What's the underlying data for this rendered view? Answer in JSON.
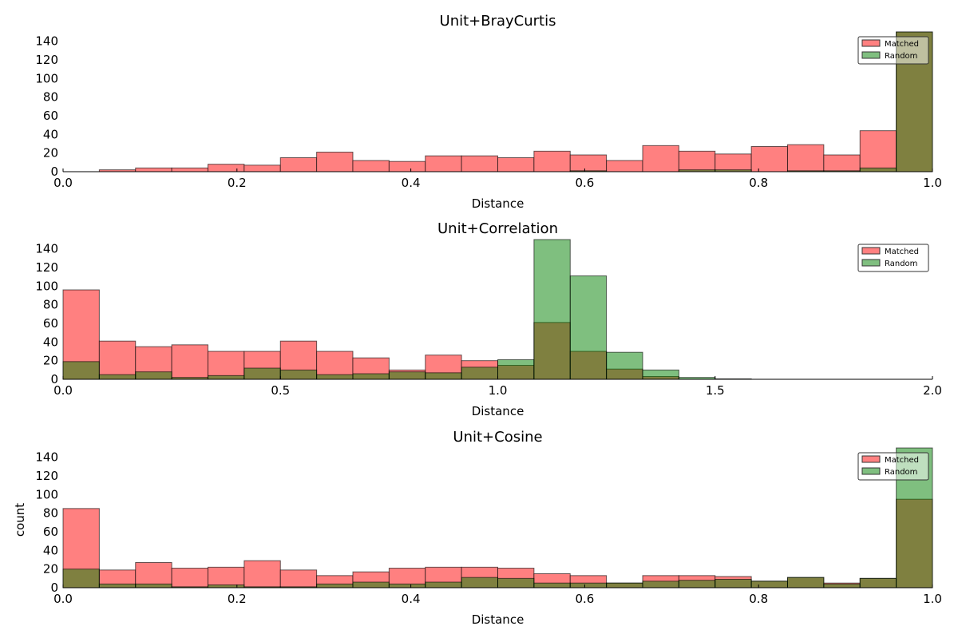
{
  "figure": {
    "ylabel": "count"
  },
  "chart_data": [
    {
      "type": "bar",
      "title": "Unit+BrayCurtis",
      "xlabel": "Distance",
      "ylabel": "",
      "xlim": [
        0,
        1
      ],
      "ylim": [
        0,
        150
      ],
      "xticks": [
        0.0,
        0.2,
        0.4,
        0.6,
        0.8,
        1.0
      ],
      "xtick_labels": [
        "0.0",
        "0.2",
        "0.4",
        "0.6",
        "0.8",
        "1.0"
      ],
      "yticks": [
        0,
        20,
        40,
        60,
        80,
        100,
        120,
        140
      ],
      "ytick_labels": [
        "0",
        "20",
        "40",
        "60",
        "80",
        "100",
        "120",
        "140"
      ],
      "bin_edges": [
        0,
        0.04167,
        0.08333,
        0.125,
        0.16667,
        0.20833,
        0.25,
        0.29167,
        0.33333,
        0.375,
        0.41667,
        0.45833,
        0.5,
        0.54167,
        0.58333,
        0.625,
        0.66667,
        0.70833,
        0.75,
        0.79167,
        0.83333,
        0.875,
        0.91667,
        0.95833,
        1.0
      ],
      "series": [
        {
          "name": "Matched",
          "color": "#ff8080",
          "values": [
            0,
            2,
            4,
            4,
            8,
            7,
            15,
            21,
            12,
            11,
            17,
            17,
            15,
            22,
            18,
            12,
            28,
            22,
            19,
            27,
            29,
            18,
            44,
            150
          ]
        },
        {
          "name": "Random",
          "color": "#80bf80",
          "values": [
            0,
            0,
            0,
            0,
            0,
            0,
            0,
            0,
            0,
            0,
            0,
            0,
            0,
            0,
            1,
            0,
            0,
            2,
            2,
            0,
            1,
            1,
            4,
            150
          ]
        }
      ],
      "legend_position": "top-right",
      "grid": false
    },
    {
      "type": "bar",
      "title": "Unit+Correlation",
      "xlabel": "Distance",
      "ylabel": "",
      "xlim": [
        0,
        2
      ],
      "ylim": [
        0,
        150
      ],
      "xticks": [
        0.0,
        0.5,
        1.0,
        1.5,
        2.0
      ],
      "xtick_labels": [
        "0.0",
        "0.5",
        "1.0",
        "1.5",
        "2.0"
      ],
      "yticks": [
        0,
        20,
        40,
        60,
        80,
        100,
        120,
        140
      ],
      "ytick_labels": [
        "0",
        "20",
        "40",
        "60",
        "80",
        "100",
        "120",
        "140"
      ],
      "bin_edges": [
        0,
        0.08333,
        0.16667,
        0.25,
        0.33333,
        0.41667,
        0.5,
        0.58333,
        0.66667,
        0.75,
        0.83333,
        0.91667,
        1.0,
        1.08333,
        1.16667,
        1.25,
        1.33333,
        1.41667,
        1.5,
        1.58333
      ],
      "series": [
        {
          "name": "Matched",
          "color": "#ff8080",
          "values": [
            96,
            41,
            35,
            37,
            30,
            30,
            41,
            30,
            23,
            10,
            26,
            20,
            15,
            61,
            30,
            11,
            3,
            0,
            0
          ]
        },
        {
          "name": "Random",
          "color": "#80bf80",
          "values": [
            19,
            5,
            8,
            2,
            4,
            12,
            10,
            5,
            6,
            8,
            7,
            13,
            21,
            150,
            111,
            29,
            10,
            2,
            0.5
          ]
        }
      ],
      "legend_position": "top-right",
      "grid": false
    },
    {
      "type": "bar",
      "title": "Unit+Cosine",
      "xlabel": "Distance",
      "ylabel": "count",
      "xlim": [
        0,
        1
      ],
      "ylim": [
        0,
        150
      ],
      "xticks": [
        0.0,
        0.2,
        0.4,
        0.6,
        0.8,
        1.0
      ],
      "xtick_labels": [
        "0.0",
        "0.2",
        "0.4",
        "0.6",
        "0.8",
        "1.0"
      ],
      "yticks": [
        0,
        20,
        40,
        60,
        80,
        100,
        120,
        140
      ],
      "ytick_labels": [
        "0",
        "20",
        "40",
        "60",
        "80",
        "100",
        "120",
        "140"
      ],
      "bin_edges": [
        0,
        0.04167,
        0.08333,
        0.125,
        0.16667,
        0.20833,
        0.25,
        0.29167,
        0.33333,
        0.375,
        0.41667,
        0.45833,
        0.5,
        0.54167,
        0.58333,
        0.625,
        0.66667,
        0.70833,
        0.75,
        0.79167,
        0.83333,
        0.875,
        0.91667,
        0.95833,
        1.0
      ],
      "series": [
        {
          "name": "Matched",
          "color": "#ff8080",
          "values": [
            85,
            19,
            27,
            21,
            22,
            29,
            19,
            13,
            17,
            21,
            22,
            22,
            21,
            15,
            13,
            5,
            13,
            13,
            12,
            7,
            11,
            5,
            10,
            95
          ]
        },
        {
          "name": "Random",
          "color": "#80bf80",
          "values": [
            20,
            4,
            4,
            1,
            3,
            1,
            1,
            4,
            6,
            4,
            6,
            11,
            10,
            5,
            5,
            5,
            7,
            8,
            9,
            7,
            11,
            4,
            10,
            150
          ]
        }
      ],
      "legend_position": "top-right",
      "grid": false
    }
  ]
}
